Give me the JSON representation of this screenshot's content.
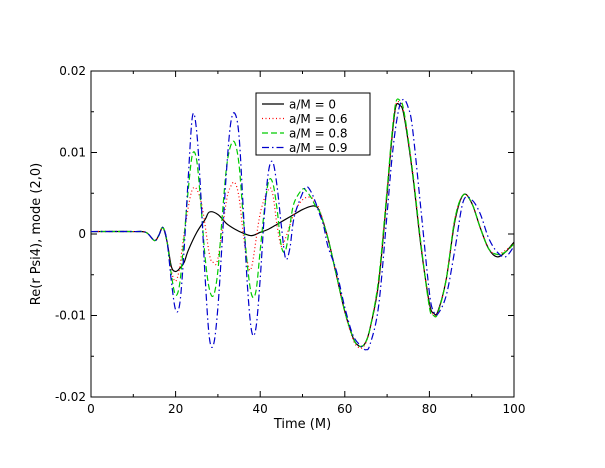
{
  "chart_data": {
    "type": "line",
    "title": "",
    "xlabel": "Time (M)",
    "ylabel": "Re(r Psi4), mode (2,0)",
    "xlim": [
      0,
      100
    ],
    "ylim": [
      -0.02,
      0.02
    ],
    "xticks": [
      0,
      20,
      40,
      60,
      80,
      100
    ],
    "xtick_labels": [
      "0",
      "20",
      "40",
      "60",
      "80",
      "100"
    ],
    "yticks": [
      -0.02,
      -0.01,
      0,
      0.01,
      0.02
    ],
    "ytick_labels": [
      "-0.02",
      "-0.01",
      "0",
      "0.01",
      "0.02"
    ],
    "grid": false,
    "legend_position": "top-center",
    "series": [
      {
        "name": "a/M = 0",
        "color": "#000000",
        "dash": "solid",
        "x": [
          0,
          10,
          13,
          15,
          16,
          17,
          18,
          19,
          20,
          21,
          22,
          23,
          25,
          27,
          28,
          30,
          32,
          34,
          36,
          38,
          40,
          42,
          44,
          46,
          48,
          50,
          52,
          53,
          54,
          56,
          58,
          60,
          62,
          63,
          64,
          65,
          66,
          68,
          70,
          71,
          72,
          73,
          74,
          76,
          78,
          80,
          81,
          82,
          84,
          86,
          88,
          90,
          92,
          94,
          96,
          98,
          100
        ],
        "y": [
          0.0003,
          0.0003,
          0.0002,
          -0.0008,
          -0.0002,
          0.0008,
          -0.001,
          -0.004,
          -0.0046,
          -0.0042,
          -0.0035,
          -0.002,
          0.0002,
          0.0018,
          0.0027,
          0.0024,
          0.0013,
          0.0006,
          0.0001,
          -0.0002,
          0.0002,
          0.0006,
          0.0012,
          0.0018,
          0.0024,
          0.003,
          0.0034,
          0.0034,
          0.0028,
          -0.0005,
          -0.005,
          -0.0095,
          -0.0128,
          -0.0136,
          -0.0138,
          -0.0132,
          -0.0115,
          -0.006,
          0.005,
          0.011,
          0.0155,
          0.0158,
          0.0145,
          0.0075,
          -0.0015,
          -0.0085,
          -0.0097,
          -0.0095,
          -0.0055,
          0.0015,
          0.0048,
          0.0038,
          0.0008,
          -0.0018,
          -0.0028,
          -0.0022,
          -0.001
        ]
      },
      {
        "name": "a/M = 0.6",
        "color": "#ff0000",
        "dash": "1,2.5",
        "x": [
          0,
          10,
          13,
          15,
          16,
          17,
          18,
          19,
          20,
          21,
          22,
          24,
          26,
          28,
          29,
          30,
          32,
          33,
          34,
          35,
          36,
          37,
          38,
          40,
          42,
          43,
          44,
          45,
          46,
          48,
          50,
          52,
          53,
          54,
          56,
          58,
          60,
          62,
          63,
          64,
          65,
          66,
          68,
          70,
          71,
          72,
          73,
          74,
          76,
          78,
          80,
          81,
          82,
          84,
          86,
          88,
          90,
          92,
          94,
          96,
          98,
          100
        ],
        "y": [
          0.0003,
          0.0003,
          0.0002,
          -0.0008,
          -0.0002,
          0.0008,
          -0.001,
          -0.0045,
          -0.0058,
          -0.004,
          0.0,
          0.0055,
          0.004,
          -0.0025,
          -0.0035,
          -0.003,
          0.004,
          0.0058,
          0.0063,
          0.0045,
          0.0,
          -0.0035,
          -0.004,
          0.0025,
          0.0055,
          0.0048,
          0.001,
          -0.0015,
          -0.0005,
          0.0025,
          0.0042,
          0.0045,
          0.0038,
          0.003,
          -0.0005,
          -0.005,
          -0.0096,
          -0.013,
          -0.0138,
          -0.014,
          -0.0133,
          -0.0115,
          -0.0058,
          0.0052,
          0.0112,
          0.0157,
          0.0161,
          0.0148,
          0.0078,
          -0.0012,
          -0.0088,
          -0.0098,
          -0.0096,
          -0.0055,
          0.0018,
          0.0048,
          0.0038,
          0.0008,
          -0.0018,
          -0.0025,
          -0.002,
          -0.0012
        ]
      },
      {
        "name": "a/M = 0.8",
        "color": "#00cc00",
        "dash": "6,3",
        "x": [
          0,
          10,
          13,
          15,
          16,
          17,
          18,
          19,
          20,
          21,
          22,
          23,
          24,
          25,
          26,
          27,
          28,
          29,
          30,
          31,
          32,
          33,
          34,
          35,
          36,
          37,
          38,
          39,
          40,
          41,
          42,
          43,
          44,
          45,
          46,
          47,
          48,
          50,
          51,
          52,
          53,
          54,
          56,
          58,
          60,
          62,
          63,
          64,
          65,
          66,
          68,
          70,
          71,
          72,
          73,
          74,
          76,
          78,
          80,
          81,
          82,
          84,
          86,
          88,
          90,
          92,
          94,
          96,
          98,
          100
        ],
        "y": [
          0.0003,
          0.0003,
          0.0002,
          -0.0008,
          -0.0002,
          0.0008,
          -0.001,
          -0.005,
          -0.0075,
          -0.006,
          -0.0005,
          0.0055,
          0.0098,
          0.009,
          0.0035,
          -0.003,
          -0.0068,
          -0.0075,
          -0.0045,
          0.002,
          0.008,
          0.0108,
          0.0112,
          0.0085,
          0.002,
          -0.004,
          -0.0075,
          -0.007,
          -0.002,
          0.003,
          0.0065,
          0.0062,
          0.003,
          -0.0015,
          -0.002,
          0.001,
          0.0038,
          0.0055,
          0.0052,
          0.0045,
          0.0035,
          0.0028,
          -0.0005,
          -0.005,
          -0.0095,
          -0.0128,
          -0.0136,
          -0.0138,
          -0.0132,
          -0.0115,
          -0.0055,
          0.0055,
          0.0115,
          0.016,
          0.0164,
          0.015,
          0.0078,
          -0.0012,
          -0.009,
          -0.01,
          -0.0097,
          -0.0055,
          0.0018,
          0.0048,
          0.0038,
          0.0008,
          -0.0018,
          -0.0025,
          -0.0022,
          -0.0012
        ]
      },
      {
        "name": "a/M = 0.9",
        "color": "#0000cc",
        "dash": "7,3,1.5,3",
        "x": [
          0,
          10,
          13,
          15,
          16,
          17,
          18,
          19,
          20,
          21,
          22,
          23,
          24,
          25,
          26,
          27,
          28,
          29,
          30,
          31,
          32,
          33,
          34,
          35,
          36,
          37,
          38,
          39,
          40,
          41,
          42,
          43,
          44,
          45,
          46,
          47,
          48,
          50,
          51,
          52,
          53,
          54,
          55,
          56,
          58,
          60,
          62,
          64,
          65,
          66,
          68,
          70,
          71,
          72,
          73,
          74,
          75,
          76,
          78,
          80,
          81,
          82,
          84,
          86,
          88,
          90,
          92,
          94,
          96,
          98,
          100
        ],
        "y": [
          0.0003,
          0.0003,
          0.0002,
          -0.0008,
          -0.0002,
          0.0008,
          -0.001,
          -0.0058,
          -0.0093,
          -0.0085,
          -0.002,
          0.007,
          0.0145,
          0.0125,
          0.0045,
          -0.0055,
          -0.0128,
          -0.0135,
          -0.009,
          -0.001,
          0.0075,
          0.0135,
          0.0148,
          0.012,
          0.003,
          -0.0065,
          -0.012,
          -0.0115,
          -0.0055,
          0.0025,
          0.0078,
          0.0088,
          0.0058,
          0.001,
          -0.003,
          -0.0018,
          0.002,
          0.005,
          0.0058,
          0.0052,
          0.004,
          0.0025,
          0.001,
          -0.0015,
          -0.0045,
          -0.009,
          -0.0125,
          -0.0138,
          -0.0142,
          -0.0135,
          -0.0088,
          0.0025,
          0.0085,
          0.013,
          0.0158,
          0.0165,
          0.0155,
          0.013,
          0.003,
          -0.0072,
          -0.0095,
          -0.0098,
          -0.0075,
          -0.002,
          0.004,
          0.0042,
          0.0025,
          -0.0005,
          -0.0022,
          -0.0028,
          -0.0015
        ]
      }
    ]
  }
}
